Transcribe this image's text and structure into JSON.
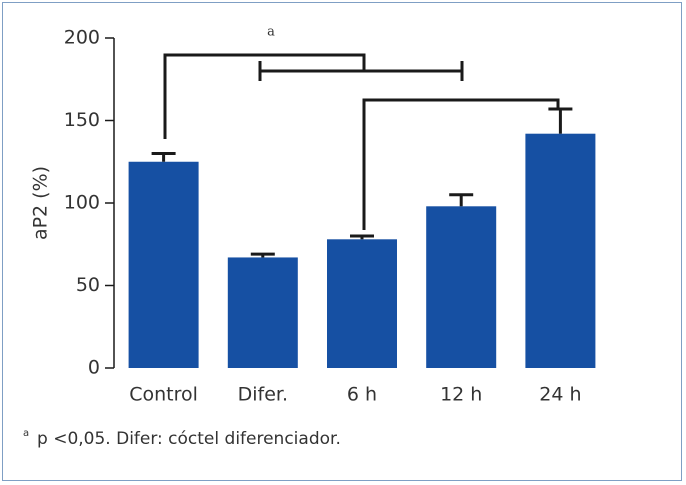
{
  "chart_data": {
    "type": "bar",
    "y_label": "aP2 (%)",
    "categories": [
      "Control",
      "Difer.",
      "6 h",
      "12 h",
      "24 h"
    ],
    "values": [
      125,
      67,
      78,
      98,
      142
    ],
    "errors": [
      5,
      2,
      2,
      7,
      15
    ],
    "color": "#1650a3",
    "ylim": [
      0,
      200
    ],
    "yticks": [
      0,
      50,
      100,
      150,
      200
    ],
    "annotation": "a",
    "footnote_marker": "a",
    "footnote": "p <0,05. Difer: cóctel diferenciador."
  }
}
